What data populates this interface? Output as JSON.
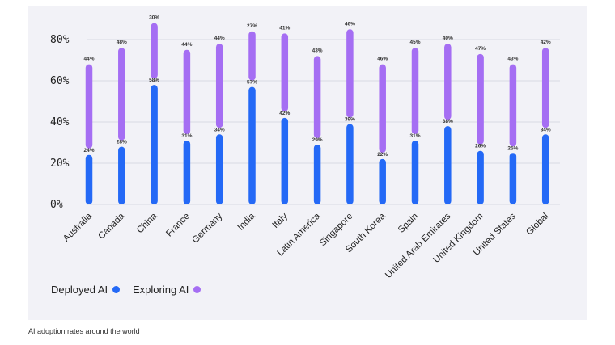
{
  "caption": "AI adoption rates around the world",
  "colors": {
    "deployed": "#2469f6",
    "exploring": "#a56ef3",
    "grid": "#cfd2dc",
    "background": "#f2f2f7"
  },
  "chart_data": {
    "type": "bar",
    "title": "",
    "xlabel": "",
    "ylabel": "",
    "ylim": [
      0,
      80
    ],
    "yticks": [
      "0%",
      "20%",
      "40%",
      "60%",
      "80%"
    ],
    "grid": true,
    "legend": "bottom-left",
    "categories": [
      "Australia",
      "Canada",
      "China",
      "France",
      "Germany",
      "India",
      "Italy",
      "Latin America",
      "Singapore",
      "South Korea",
      "Spain",
      "United Arab Emirates",
      "United Kingdom",
      "United States",
      "Global"
    ],
    "series": [
      {
        "name": "Deployed AI",
        "values": [
          24,
          28,
          58,
          31,
          34,
          57,
          42,
          29,
          39,
          22,
          31,
          38,
          26,
          25,
          34
        ],
        "labels": [
          "24%",
          "28%",
          "58%",
          "31%",
          "34%",
          "57%",
          "42%",
          "29%",
          "39%",
          "22%",
          "31%",
          "38%",
          "26%",
          "25%",
          "34%"
        ]
      },
      {
        "name": "Exploring AI",
        "values": [
          44,
          48,
          30,
          44,
          44,
          27,
          41,
          43,
          46,
          46,
          45,
          40,
          47,
          43,
          42
        ],
        "labels": [
          "44%",
          "48%",
          "30%",
          "44%",
          "44%",
          "27%",
          "41%",
          "43%",
          "46%",
          "46%",
          "45%",
          "40%",
          "47%",
          "43%",
          "42%"
        ]
      }
    ]
  }
}
